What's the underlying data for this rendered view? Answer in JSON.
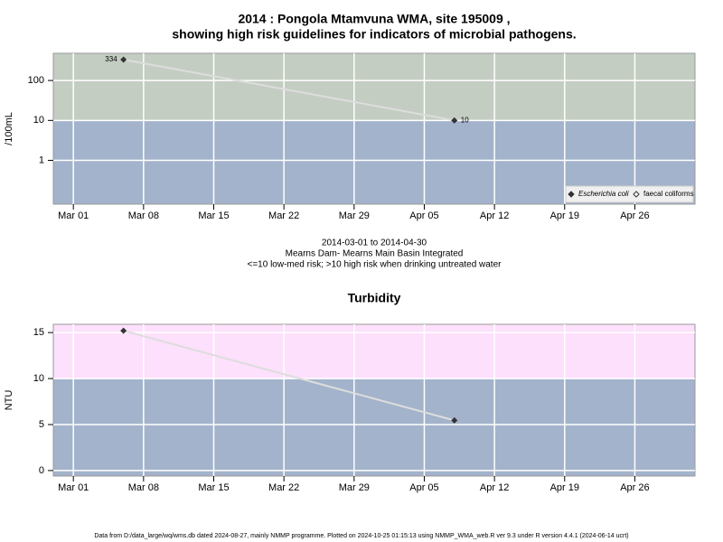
{
  "chart_data": [
    {
      "type": "line",
      "title": [
        "2014 : Pongola Mtamvuna WMA, site 195009 ,",
        "showing high risk guidelines for indicators of microbial pathogens."
      ],
      "subtitle": [
        "2014-03-01 to 2014-04-30",
        "Mearns Dam- Mearns Main Basin Integrated",
        "<=10 low-med risk; >10 high risk when drinking untreated water"
      ],
      "y_label": "/100mL",
      "log_y": true,
      "threshold": 10,
      "band_colors": [
        "#a3b3cb",
        "#c4cdc2"
      ],
      "x": [
        "2014-03-06",
        "2014-04-08"
      ],
      "series": [
        {
          "name": "Escherichia coli",
          "color": "#333333",
          "line_color": "#dddddd",
          "values": [
            334,
            10
          ],
          "value_labels": [
            "334",
            "10"
          ]
        },
        {
          "name": "faecal coliforms",
          "color": "#333333",
          "line_color": "#dddddd",
          "values": [
            null,
            null
          ]
        }
      ],
      "legend": "bottom-right",
      "xlim": [
        "2014-02-27",
        "2014-05-02"
      ],
      "xticks": [
        {
          "value": "2014-03-01",
          "label": "Mar 01"
        },
        {
          "value": "2014-03-08",
          "label": "Mar 08"
        },
        {
          "value": "2014-03-15",
          "label": "Mar 15"
        },
        {
          "value": "2014-03-22",
          "label": "Mar 22"
        },
        {
          "value": "2014-03-29",
          "label": "Mar 29"
        },
        {
          "value": "2014-04-05",
          "label": "Apr 05"
        },
        {
          "value": "2014-04-12",
          "label": "Apr 12"
        },
        {
          "value": "2014-04-19",
          "label": "Apr 19"
        },
        {
          "value": "2014-04-26",
          "label": "Apr 26"
        }
      ],
      "ylim": [
        0.08,
        480
      ],
      "yticks": [
        1,
        10,
        100
      ],
      "grid": true
    },
    {
      "type": "line",
      "title": [
        "Turbidity"
      ],
      "y_label": "NTU",
      "log_y": false,
      "threshold": 10,
      "band_colors": [
        "#a3b3cb",
        "#fde0fc"
      ],
      "x": [
        "2014-03-06",
        "2014-04-08"
      ],
      "series": [
        {
          "name": "Turbidity",
          "color": "#333333",
          "line_color": "#dddddd",
          "values": [
            15.2,
            5.45
          ]
        }
      ],
      "xlim": [
        "2014-02-27",
        "2014-05-02"
      ],
      "xticks": [
        {
          "value": "2014-03-01",
          "label": "Mar 01"
        },
        {
          "value": "2014-03-08",
          "label": "Mar 08"
        },
        {
          "value": "2014-03-15",
          "label": "Mar 15"
        },
        {
          "value": "2014-03-22",
          "label": "Mar 22"
        },
        {
          "value": "2014-03-29",
          "label": "Mar 29"
        },
        {
          "value": "2014-04-05",
          "label": "Apr 05"
        },
        {
          "value": "2014-04-12",
          "label": "Apr 12"
        },
        {
          "value": "2014-04-19",
          "label": "Apr 19"
        },
        {
          "value": "2014-04-26",
          "label": "Apr 26"
        }
      ],
      "ylim": [
        -0.6,
        15.9
      ],
      "yticks": [
        0,
        5,
        10,
        15
      ],
      "grid": true
    }
  ],
  "footer": "Data from D:/data_large/wq/wms.db dated 2024-08-27, mainly NMMP programme. Plotted on 2024-10-25 01:15:13 using NMMP_WMA_web.R ver 9.3 under R version 4.4.1 (2024-06-14 ucrt)"
}
